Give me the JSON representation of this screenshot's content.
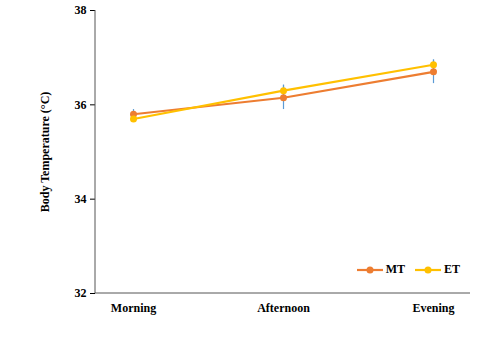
{
  "chart_data": {
    "type": "line",
    "y_label": "Body Temperature (°C)",
    "categories": [
      "Morning",
      "Afternoon",
      "Evening"
    ],
    "series": [
      {
        "name": "MT",
        "color": "#ed7d31",
        "marker": "circle",
        "values": [
          35.8,
          36.15,
          36.7
        ],
        "error": [
          0.1,
          0.25,
          0.25
        ]
      },
      {
        "name": "ET",
        "color": "#ffc000",
        "marker": "circle",
        "values": [
          35.7,
          36.3,
          36.85
        ],
        "error": [
          0.07,
          0.12,
          0.1
        ]
      }
    ],
    "ylim": [
      32,
      38
    ],
    "yticks": [
      32,
      34,
      36,
      38
    ],
    "grid": false,
    "legend": "lower right"
  }
}
